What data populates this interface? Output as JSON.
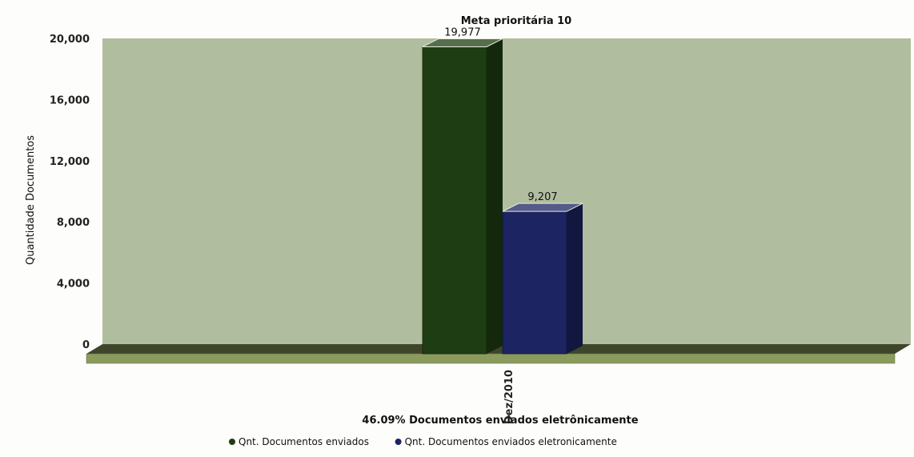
{
  "chart_data": {
    "type": "bar",
    "title": "Meta prioritária 10",
    "subtitle": "46.09% Documentos enviados eletrônicamente",
    "xlabel": "",
    "ylabel": "Quantidade Documentos",
    "categories": [
      "Dez/2010"
    ],
    "series": [
      {
        "name": "Qnt. Documentos enviados",
        "values": [
          19977
        ],
        "value_labels": [
          "19,977"
        ],
        "color": "#1f3d13"
      },
      {
        "name": "Qnt. Documentos enviados eletronicamente",
        "values": [
          9207
        ],
        "value_labels": [
          "9,207"
        ],
        "color": "#1c2461"
      }
    ],
    "ylim": [
      0,
      20000
    ],
    "yticks": [
      0,
      4000,
      8000,
      12000,
      16000,
      20000
    ],
    "ytick_labels": [
      "0",
      "4,000",
      "8,000",
      "12,000",
      "16,000",
      "20,000"
    ],
    "grid": false,
    "legend_position": "bottom",
    "style": "3d",
    "colors": {
      "plot_background": "#b0bd9f",
      "floor": "#8b9a5d"
    }
  }
}
